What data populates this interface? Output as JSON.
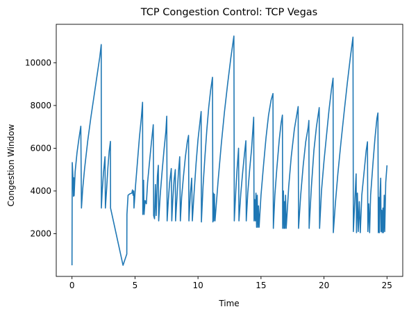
{
  "chart_data": {
    "type": "line",
    "title": "TCP Congestion Control: TCP Vegas",
    "xlabel": "Time",
    "ylabel": "Congestion Window",
    "xlim": [
      -1.25,
      26.25
    ],
    "ylim": [
      0,
      11800
    ],
    "x_ticks": [
      0,
      5,
      10,
      15,
      20,
      25
    ],
    "y_ticks": [
      2000,
      4000,
      6000,
      8000,
      10000
    ],
    "x_tick_labels": [
      "0",
      "5",
      "10",
      "15",
      "20",
      "25"
    ],
    "y_tick_labels": [
      "2000",
      "4000",
      "6000",
      "8000",
      "10000"
    ],
    "grid": false,
    "series": [
      {
        "color": "#1f77b4",
        "points": [
          [
            0.0,
            520
          ],
          [
            0.02,
            5330
          ],
          [
            0.08,
            4600
          ],
          [
            0.12,
            3750
          ],
          [
            0.14,
            4620
          ],
          [
            0.17,
            3780
          ],
          [
            0.25,
            4900
          ],
          [
            0.4,
            5800
          ],
          [
            0.55,
            6450
          ],
          [
            0.7,
            7030
          ],
          [
            0.75,
            3200
          ],
          [
            0.85,
            4100
          ],
          [
            1.0,
            5050
          ],
          [
            1.25,
            6350
          ],
          [
            1.5,
            7450
          ],
          [
            1.75,
            8450
          ],
          [
            2.0,
            9450
          ],
          [
            2.2,
            10250
          ],
          [
            2.32,
            10850
          ],
          [
            2.33,
            3200
          ],
          [
            2.4,
            4000
          ],
          [
            2.5,
            4850
          ],
          [
            2.62,
            5600
          ],
          [
            2.65,
            3200
          ],
          [
            2.75,
            4100
          ],
          [
            2.85,
            5100
          ],
          [
            2.95,
            5850
          ],
          [
            3.05,
            6320
          ],
          [
            3.06,
            3200
          ],
          [
            4.05,
            520
          ],
          [
            4.35,
            1050
          ],
          [
            4.36,
            2900
          ],
          [
            4.45,
            3800
          ],
          [
            4.6,
            3870
          ],
          [
            4.75,
            3900
          ],
          [
            4.8,
            4050
          ],
          [
            4.85,
            3800
          ],
          [
            4.9,
            4000
          ],
          [
            4.92,
            3200
          ],
          [
            5.05,
            4300
          ],
          [
            5.2,
            5400
          ],
          [
            5.35,
            6500
          ],
          [
            5.5,
            7400
          ],
          [
            5.6,
            8150
          ],
          [
            5.62,
            2900
          ],
          [
            5.68,
            4500
          ],
          [
            5.72,
            2900
          ],
          [
            5.8,
            3550
          ],
          [
            5.9,
            3400
          ],
          [
            6.0,
            4400
          ],
          [
            6.15,
            5350
          ],
          [
            6.3,
            6250
          ],
          [
            6.45,
            7100
          ],
          [
            6.48,
            2850
          ],
          [
            6.55,
            2700
          ],
          [
            6.62,
            4300
          ],
          [
            6.68,
            2850
          ],
          [
            6.78,
            4700
          ],
          [
            6.85,
            5200
          ],
          [
            6.88,
            2600
          ],
          [
            7.0,
            3800
          ],
          [
            7.15,
            4900
          ],
          [
            7.3,
            5900
          ],
          [
            7.45,
            6800
          ],
          [
            7.52,
            7500
          ],
          [
            7.55,
            2600
          ],
          [
            7.65,
            3600
          ],
          [
            7.75,
            4400
          ],
          [
            7.88,
            5050
          ],
          [
            7.92,
            2600
          ],
          [
            8.0,
            3600
          ],
          [
            8.1,
            4500
          ],
          [
            8.2,
            5000
          ],
          [
            8.22,
            2600
          ],
          [
            8.35,
            3900
          ],
          [
            8.45,
            4900
          ],
          [
            8.55,
            5600
          ],
          [
            8.6,
            2600
          ],
          [
            8.7,
            3700
          ],
          [
            8.85,
            4700
          ],
          [
            9.0,
            5600
          ],
          [
            9.15,
            6300
          ],
          [
            9.25,
            6600
          ],
          [
            9.28,
            2600
          ],
          [
            9.4,
            3900
          ],
          [
            9.5,
            4600
          ],
          [
            9.55,
            2600
          ],
          [
            9.7,
            4000
          ],
          [
            9.85,
            5300
          ],
          [
            10.0,
            6400
          ],
          [
            10.15,
            7200
          ],
          [
            10.25,
            7720
          ],
          [
            10.27,
            2550
          ],
          [
            10.4,
            4200
          ],
          [
            10.55,
            5600
          ],
          [
            10.7,
            6850
          ],
          [
            10.85,
            7900
          ],
          [
            11.0,
            8700
          ],
          [
            11.15,
            9320
          ],
          [
            11.18,
            2550
          ],
          [
            11.22,
            3900
          ],
          [
            11.25,
            2600
          ],
          [
            11.3,
            3850
          ],
          [
            11.35,
            2600
          ],
          [
            11.6,
            4500
          ],
          [
            11.85,
            6200
          ],
          [
            12.1,
            7700
          ],
          [
            12.35,
            9000
          ],
          [
            12.6,
            10200
          ],
          [
            12.85,
            11250
          ],
          [
            12.88,
            2600
          ],
          [
            13.0,
            4000
          ],
          [
            13.1,
            5000
          ],
          [
            13.22,
            6000
          ],
          [
            13.25,
            2600
          ],
          [
            13.4,
            3900
          ],
          [
            13.55,
            4900
          ],
          [
            13.7,
            5800
          ],
          [
            13.8,
            6350
          ],
          [
            13.83,
            2600
          ],
          [
            13.95,
            3900
          ],
          [
            14.1,
            5000
          ],
          [
            14.25,
            5950
          ],
          [
            14.42,
            7450
          ],
          [
            14.45,
            2600
          ],
          [
            14.5,
            3600
          ],
          [
            14.55,
            2600
          ],
          [
            14.6,
            3900
          ],
          [
            14.65,
            2300
          ],
          [
            14.7,
            3800
          ],
          [
            14.75,
            2300
          ],
          [
            14.8,
            3300
          ],
          [
            14.85,
            2300
          ],
          [
            15.0,
            3800
          ],
          [
            15.2,
            5200
          ],
          [
            15.4,
            6500
          ],
          [
            15.6,
            7550
          ],
          [
            15.8,
            8250
          ],
          [
            15.95,
            8560
          ],
          [
            15.98,
            2250
          ],
          [
            16.1,
            3800
          ],
          [
            16.25,
            5000
          ],
          [
            16.45,
            6400
          ],
          [
            16.6,
            7200
          ],
          [
            16.7,
            7550
          ],
          [
            16.72,
            2250
          ],
          [
            16.78,
            4000
          ],
          [
            16.82,
            2250
          ],
          [
            16.86,
            3500
          ],
          [
            16.9,
            2250
          ],
          [
            16.95,
            3800
          ],
          [
            17.0,
            2250
          ],
          [
            17.2,
            4200
          ],
          [
            17.4,
            5600
          ],
          [
            17.65,
            6900
          ],
          [
            17.95,
            7950
          ],
          [
            17.98,
            2250
          ],
          [
            18.15,
            3800
          ],
          [
            18.35,
            5200
          ],
          [
            18.55,
            6300
          ],
          [
            18.75,
            7000
          ],
          [
            18.8,
            7300
          ],
          [
            18.82,
            2250
          ],
          [
            19.0,
            4200
          ],
          [
            19.2,
            5900
          ],
          [
            19.4,
            7000
          ],
          [
            19.62,
            7900
          ],
          [
            19.65,
            2250
          ],
          [
            19.8,
            4000
          ],
          [
            20.0,
            5400
          ],
          [
            20.2,
            6600
          ],
          [
            20.4,
            7800
          ],
          [
            20.6,
            8800
          ],
          [
            20.72,
            9280
          ],
          [
            20.74,
            2050
          ],
          [
            20.9,
            3400
          ],
          [
            21.1,
            4800
          ],
          [
            21.35,
            6300
          ],
          [
            21.6,
            7700
          ],
          [
            21.85,
            9050
          ],
          [
            22.1,
            10300
          ],
          [
            22.3,
            11200
          ],
          [
            22.33,
            2100
          ],
          [
            22.45,
            3600
          ],
          [
            22.55,
            4800
          ],
          [
            22.58,
            2050
          ],
          [
            22.65,
            3900
          ],
          [
            22.72,
            2100
          ],
          [
            22.8,
            3500
          ],
          [
            22.88,
            2050
          ],
          [
            23.0,
            3800
          ],
          [
            23.2,
            5000
          ],
          [
            23.35,
            5900
          ],
          [
            23.45,
            6300
          ],
          [
            23.48,
            2100
          ],
          [
            23.55,
            3400
          ],
          [
            23.62,
            2050
          ],
          [
            23.7,
            3800
          ],
          [
            23.9,
            5400
          ],
          [
            24.05,
            6500
          ],
          [
            24.2,
            7400
          ],
          [
            24.28,
            7650
          ],
          [
            24.31,
            2050
          ],
          [
            24.36,
            3700
          ],
          [
            24.4,
            2050
          ],
          [
            24.45,
            3900
          ],
          [
            24.5,
            4600
          ],
          [
            24.53,
            2100
          ],
          [
            24.58,
            3100
          ],
          [
            24.62,
            2050
          ],
          [
            24.68,
            3200
          ],
          [
            24.72,
            2050
          ],
          [
            24.78,
            3800
          ],
          [
            24.82,
            2100
          ],
          [
            24.9,
            4400
          ],
          [
            25.0,
            5200
          ]
        ]
      }
    ]
  }
}
